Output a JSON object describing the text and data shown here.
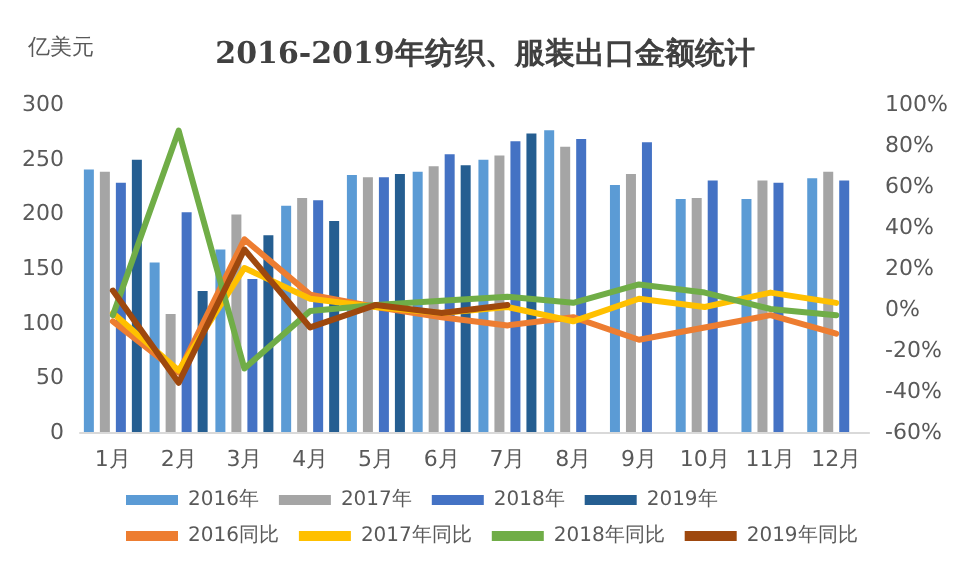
{
  "chart_data": {
    "type": "bar",
    "title": "2016-2019年纺织、服装出口金额统计",
    "ylabel": "亿美元",
    "categories": [
      "1月",
      "2月",
      "3月",
      "4月",
      "5月",
      "6月",
      "7月",
      "8月",
      "9月",
      "10月",
      "11月",
      "12月"
    ],
    "series": [
      {
        "name": "2016年",
        "color": "#5b9bd5",
        "values": [
          240,
          155,
          167,
          207,
          235,
          238,
          249,
          276,
          226,
          213,
          213,
          232
        ]
      },
      {
        "name": "2017年",
        "color": "#a5a5a5",
        "values": [
          238,
          108,
          199,
          214,
          233,
          243,
          253,
          261,
          236,
          214,
          230,
          238
        ]
      },
      {
        "name": "2018年",
        "color": "#4472c4",
        "values": [
          228,
          201,
          140,
          212,
          233,
          254,
          266,
          268,
          265,
          230,
          228,
          230
        ]
      },
      {
        "name": "2019年",
        "color": "#255e91",
        "values": [
          249,
          129,
          180,
          193,
          236,
          244,
          273,
          null,
          null,
          null,
          null,
          null
        ]
      },
      {
        "name": "2016同比",
        "type": "line",
        "axis": "y2",
        "color": "#ed7d31",
        "values": [
          -6,
          -31,
          34,
          7,
          1,
          -4,
          -8,
          -4,
          -15,
          -9,
          -3,
          -12
        ]
      },
      {
        "name": "2017年同比",
        "type": "line",
        "axis": "y2",
        "color": "#ffc000",
        "values": [
          -2,
          -30,
          20,
          5,
          1,
          -2,
          1,
          -6,
          5,
          1,
          8,
          3
        ]
      },
      {
        "name": "2018年同比",
        "type": "line",
        "axis": "y2",
        "color": "#70ad47",
        "values": [
          -3,
          87,
          -29,
          -1,
          2,
          4,
          6,
          3,
          12,
          8,
          0,
          -3
        ]
      },
      {
        "name": "2019年同比",
        "type": "line",
        "axis": "y2",
        "color": "#9e480e",
        "values": [
          9,
          -36,
          29,
          -9,
          2,
          -2,
          2,
          null,
          null,
          null,
          null,
          null
        ]
      }
    ],
    "ylim": [
      0,
      300
    ],
    "yticks": [
      0,
      50,
      100,
      150,
      200,
      250,
      300
    ],
    "y2lim": [
      -60,
      100
    ],
    "y2ticks": [
      {
        "value": -60,
        "label": "-60%"
      },
      {
        "value": -40,
        "label": "-40%"
      },
      {
        "value": -20,
        "label": "-20%"
      },
      {
        "value": 0,
        "label": "0%"
      },
      {
        "value": 20,
        "label": "20%"
      },
      {
        "value": 40,
        "label": "40%"
      },
      {
        "value": 60,
        "label": "60%"
      },
      {
        "value": 80,
        "label": "80%"
      },
      {
        "value": 100,
        "label": "100%"
      }
    ],
    "grid": false,
    "legend": "bottom",
    "marker": "none",
    "line_style": "solid"
  }
}
